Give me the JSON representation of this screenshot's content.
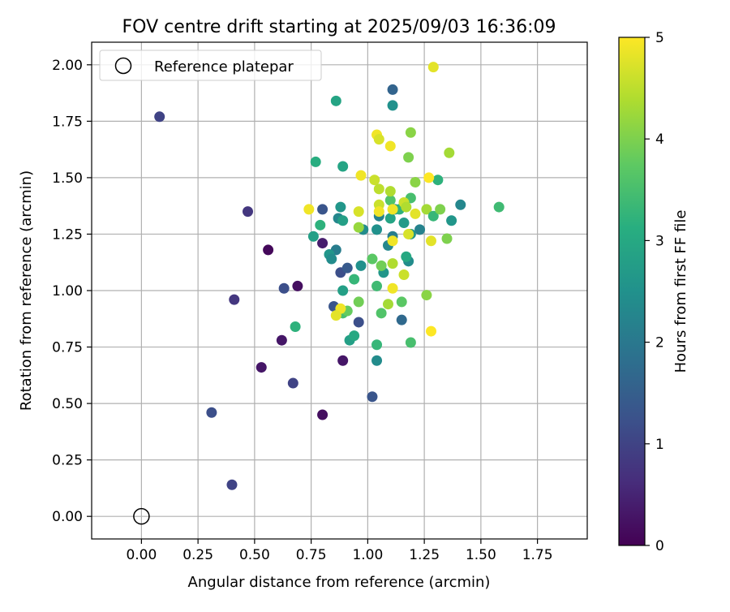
{
  "chart_data": {
    "type": "scatter",
    "title": "FOV centre drift starting at 2025/09/03 16:36:09",
    "xlabel": "Angular distance from reference (arcmin)",
    "ylabel": "Rotation from reference (arcmin)",
    "xlim": [
      -0.22,
      1.97
    ],
    "ylim": [
      -0.1,
      2.1
    ],
    "xticks": [
      "0.00",
      "0.25",
      "0.50",
      "0.75",
      "1.00",
      "1.25",
      "1.50",
      "1.75"
    ],
    "yticks": [
      "0.00",
      "0.25",
      "0.50",
      "0.75",
      "1.00",
      "1.25",
      "1.50",
      "1.75",
      "2.00"
    ],
    "grid": true,
    "legend": {
      "placement": "top-left",
      "entries": [
        "Reference platepar"
      ]
    },
    "reference_point": {
      "x": 0.0,
      "y": 0.0,
      "marker": "open-circle"
    },
    "colorbar": {
      "label": "Hours from first FF file",
      "range": [
        0,
        5
      ],
      "ticks": [
        "0",
        "1",
        "2",
        "3",
        "4",
        "5"
      ],
      "colormap": "viridis"
    },
    "series": [
      {
        "points": [
          {
            "x": 0.08,
            "y": 1.77,
            "h": 1.0
          },
          {
            "x": 0.47,
            "y": 1.35,
            "h": 0.8
          },
          {
            "x": 0.56,
            "y": 1.18,
            "h": 0.1
          },
          {
            "x": 0.69,
            "y": 1.02,
            "h": 0.2
          },
          {
            "x": 0.63,
            "y": 1.01,
            "h": 1.2
          },
          {
            "x": 0.41,
            "y": 0.96,
            "h": 0.8
          },
          {
            "x": 0.62,
            "y": 0.78,
            "h": 0.3
          },
          {
            "x": 0.53,
            "y": 0.66,
            "h": 0.3
          },
          {
            "x": 0.67,
            "y": 0.59,
            "h": 1.0
          },
          {
            "x": 0.8,
            "y": 0.45,
            "h": 0.2
          },
          {
            "x": 0.31,
            "y": 0.46,
            "h": 1.2
          },
          {
            "x": 0.4,
            "y": 0.14,
            "h": 1.0
          },
          {
            "x": 0.89,
            "y": 0.69,
            "h": 0.3
          },
          {
            "x": 0.8,
            "y": 1.21,
            "h": 0.4
          },
          {
            "x": 0.8,
            "y": 1.36,
            "h": 1.3
          },
          {
            "x": 0.88,
            "y": 1.08,
            "h": 1.2
          },
          {
            "x": 0.91,
            "y": 1.1,
            "h": 1.4
          },
          {
            "x": 0.85,
            "y": 0.93,
            "h": 1.3
          },
          {
            "x": 0.96,
            "y": 0.86,
            "h": 1.2
          },
          {
            "x": 1.02,
            "y": 0.53,
            "h": 1.3
          },
          {
            "x": 1.11,
            "y": 1.89,
            "h": 1.6
          },
          {
            "x": 1.15,
            "y": 0.87,
            "h": 1.7
          },
          {
            "x": 0.86,
            "y": 1.84,
            "h": 2.9
          },
          {
            "x": 1.11,
            "y": 1.82,
            "h": 2.5
          },
          {
            "x": 0.77,
            "y": 1.57,
            "h": 3.1
          },
          {
            "x": 0.89,
            "y": 1.55,
            "h": 2.9
          },
          {
            "x": 0.88,
            "y": 1.37,
            "h": 2.6
          },
          {
            "x": 0.87,
            "y": 1.32,
            "h": 2.3
          },
          {
            "x": 0.89,
            "y": 1.31,
            "h": 2.8
          },
          {
            "x": 0.79,
            "y": 1.29,
            "h": 3.2
          },
          {
            "x": 0.76,
            "y": 1.24,
            "h": 2.8
          },
          {
            "x": 0.86,
            "y": 1.18,
            "h": 2.1
          },
          {
            "x": 0.83,
            "y": 1.16,
            "h": 2.6
          },
          {
            "x": 0.84,
            "y": 1.14,
            "h": 2.4
          },
          {
            "x": 0.89,
            "y": 1.0,
            "h": 2.8
          },
          {
            "x": 0.94,
            "y": 1.05,
            "h": 3.3
          },
          {
            "x": 0.97,
            "y": 1.11,
            "h": 2.5
          },
          {
            "x": 0.92,
            "y": 0.78,
            "h": 2.8
          },
          {
            "x": 0.94,
            "y": 0.8,
            "h": 3.0
          },
          {
            "x": 0.68,
            "y": 0.84,
            "h": 3.2
          },
          {
            "x": 0.89,
            "y": 0.9,
            "h": 3.5
          },
          {
            "x": 0.91,
            "y": 0.91,
            "h": 3.8
          },
          {
            "x": 0.96,
            "y": 0.95,
            "h": 3.9
          },
          {
            "x": 0.98,
            "y": 1.27,
            "h": 2.4
          },
          {
            "x": 1.04,
            "y": 1.27,
            "h": 2.5
          },
          {
            "x": 1.05,
            "y": 1.33,
            "h": 2.2
          },
          {
            "x": 1.04,
            "y": 1.02,
            "h": 3.4
          },
          {
            "x": 1.07,
            "y": 1.08,
            "h": 2.6
          },
          {
            "x": 1.06,
            "y": 1.11,
            "h": 3.9
          },
          {
            "x": 1.02,
            "y": 1.14,
            "h": 3.7
          },
          {
            "x": 1.04,
            "y": 0.76,
            "h": 3.3
          },
          {
            "x": 1.04,
            "y": 0.69,
            "h": 2.4
          },
          {
            "x": 1.06,
            "y": 0.9,
            "h": 3.6
          },
          {
            "x": 1.09,
            "y": 0.94,
            "h": 4.3
          },
          {
            "x": 1.09,
            "y": 1.2,
            "h": 2.3
          },
          {
            "x": 1.11,
            "y": 1.24,
            "h": 2.1
          },
          {
            "x": 1.1,
            "y": 1.32,
            "h": 2.9
          },
          {
            "x": 1.1,
            "y": 1.4,
            "h": 3.6
          },
          {
            "x": 1.12,
            "y": 1.36,
            "h": 2.3
          },
          {
            "x": 1.14,
            "y": 1.36,
            "h": 3.2
          },
          {
            "x": 1.16,
            "y": 1.3,
            "h": 2.7
          },
          {
            "x": 1.18,
            "y": 1.13,
            "h": 2.4
          },
          {
            "x": 1.17,
            "y": 1.15,
            "h": 3.0
          },
          {
            "x": 1.19,
            "y": 1.41,
            "h": 3.5
          },
          {
            "x": 1.19,
            "y": 1.25,
            "h": 2.6
          },
          {
            "x": 1.23,
            "y": 1.27,
            "h": 2.2
          },
          {
            "x": 1.15,
            "y": 0.95,
            "h": 3.7
          },
          {
            "x": 1.19,
            "y": 0.77,
            "h": 3.5
          },
          {
            "x": 1.26,
            "y": 0.98,
            "h": 4.1
          },
          {
            "x": 1.28,
            "y": 0.82,
            "h": 5.0
          },
          {
            "x": 1.28,
            "y": 1.22,
            "h": 4.8
          },
          {
            "x": 1.26,
            "y": 1.36,
            "h": 4.3
          },
          {
            "x": 1.29,
            "y": 1.33,
            "h": 3.3
          },
          {
            "x": 1.32,
            "y": 1.36,
            "h": 4.0
          },
          {
            "x": 1.31,
            "y": 1.49,
            "h": 3.2
          },
          {
            "x": 1.35,
            "y": 1.23,
            "h": 4.0
          },
          {
            "x": 1.37,
            "y": 1.31,
            "h": 2.6
          },
          {
            "x": 1.41,
            "y": 1.38,
            "h": 2.3
          },
          {
            "x": 1.36,
            "y": 1.61,
            "h": 4.3
          },
          {
            "x": 1.58,
            "y": 1.37,
            "h": 3.4
          },
          {
            "x": 1.29,
            "y": 1.99,
            "h": 4.8
          },
          {
            "x": 1.19,
            "y": 1.7,
            "h": 4.1
          },
          {
            "x": 1.18,
            "y": 1.59,
            "h": 4.0
          },
          {
            "x": 1.21,
            "y": 1.48,
            "h": 4.1
          },
          {
            "x": 1.27,
            "y": 1.5,
            "h": 5.0
          },
          {
            "x": 1.04,
            "y": 1.69,
            "h": 4.9
          },
          {
            "x": 1.05,
            "y": 1.67,
            "h": 4.7
          },
          {
            "x": 1.1,
            "y": 1.64,
            "h": 4.9
          },
          {
            "x": 0.97,
            "y": 1.51,
            "h": 4.9
          },
          {
            "x": 1.03,
            "y": 1.49,
            "h": 4.6
          },
          {
            "x": 1.05,
            "y": 1.45,
            "h": 4.5
          },
          {
            "x": 1.1,
            "y": 1.44,
            "h": 4.4
          },
          {
            "x": 1.05,
            "y": 1.38,
            "h": 4.6
          },
          {
            "x": 1.05,
            "y": 1.35,
            "h": 4.9
          },
          {
            "x": 1.11,
            "y": 1.36,
            "h": 4.9
          },
          {
            "x": 1.16,
            "y": 1.39,
            "h": 4.6
          },
          {
            "x": 1.17,
            "y": 1.37,
            "h": 4.4
          },
          {
            "x": 1.21,
            "y": 1.34,
            "h": 4.8
          },
          {
            "x": 0.74,
            "y": 1.36,
            "h": 4.9
          },
          {
            "x": 0.96,
            "y": 1.35,
            "h": 4.7
          },
          {
            "x": 0.96,
            "y": 1.28,
            "h": 4.2
          },
          {
            "x": 1.18,
            "y": 1.25,
            "h": 4.7
          },
          {
            "x": 1.11,
            "y": 1.22,
            "h": 4.9
          },
          {
            "x": 1.11,
            "y": 1.12,
            "h": 4.4
          },
          {
            "x": 1.16,
            "y": 1.07,
            "h": 4.6
          },
          {
            "x": 1.11,
            "y": 1.01,
            "h": 4.9
          },
          {
            "x": 0.88,
            "y": 0.92,
            "h": 4.9
          },
          {
            "x": 0.86,
            "y": 0.89,
            "h": 4.8
          }
        ]
      }
    ]
  }
}
